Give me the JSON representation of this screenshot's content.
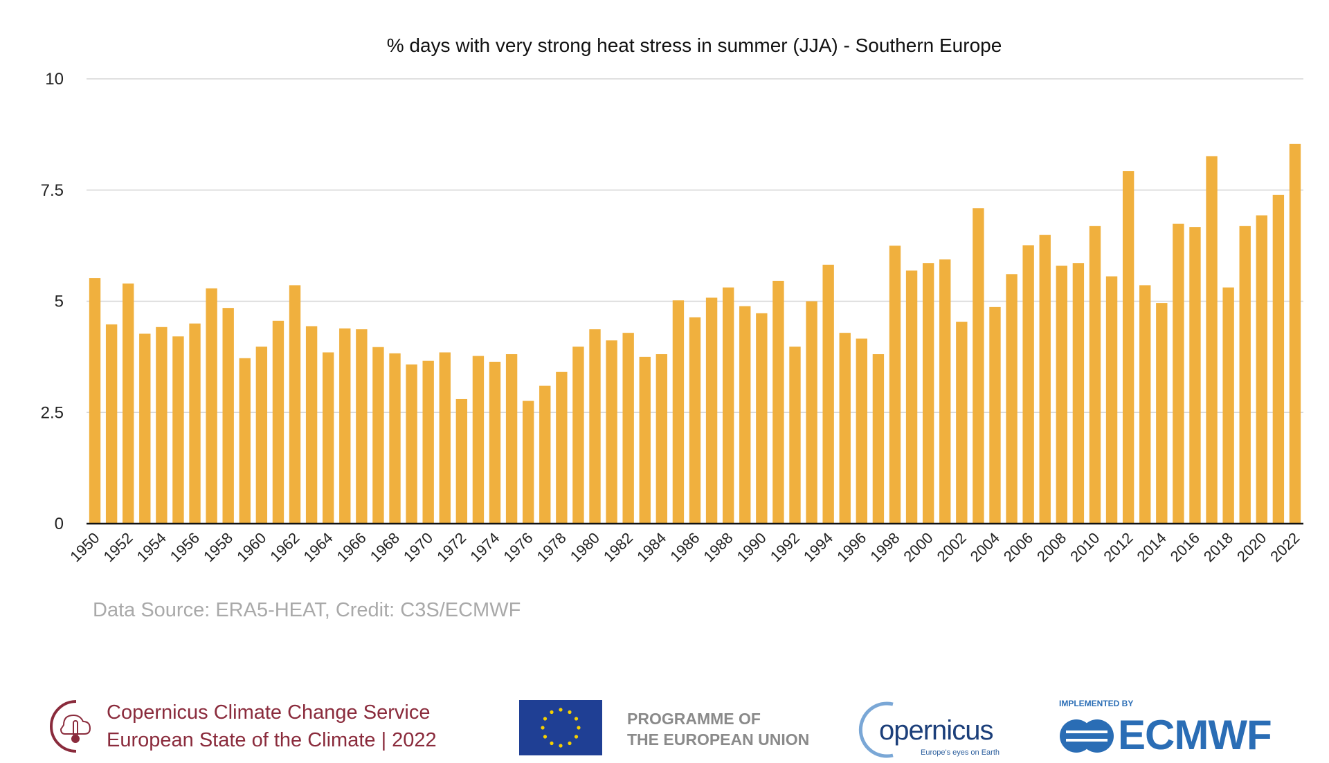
{
  "chart_data": {
    "type": "bar",
    "title": "% days with very strong heat stress in summer (JJA) - Southern Europe",
    "xlabel": "",
    "ylabel": "",
    "ylim": [
      0,
      10
    ],
    "yticks": [
      "0",
      "2.5",
      "5",
      "7.5",
      "10"
    ],
    "grid": true,
    "bar_color": "#F0B03E",
    "categories": [
      1950,
      1951,
      1952,
      1953,
      1954,
      1955,
      1956,
      1957,
      1958,
      1959,
      1960,
      1961,
      1962,
      1963,
      1964,
      1965,
      1966,
      1967,
      1968,
      1969,
      1970,
      1971,
      1972,
      1973,
      1974,
      1975,
      1976,
      1977,
      1978,
      1979,
      1980,
      1981,
      1982,
      1983,
      1984,
      1985,
      1986,
      1987,
      1988,
      1989,
      1990,
      1991,
      1992,
      1993,
      1994,
      1995,
      1996,
      1997,
      1998,
      1999,
      2000,
      2001,
      2002,
      2003,
      2004,
      2005,
      2006,
      2007,
      2008,
      2009,
      2010,
      2011,
      2012,
      2013,
      2014,
      2015,
      2016,
      2017,
      2018,
      2019,
      2020,
      2021,
      2022
    ],
    "values": [
      5.52,
      4.48,
      5.4,
      4.27,
      4.42,
      4.21,
      4.5,
      5.29,
      4.85,
      3.72,
      3.98,
      4.56,
      5.36,
      4.44,
      3.85,
      4.39,
      4.37,
      3.97,
      3.83,
      3.58,
      3.66,
      3.85,
      2.8,
      3.77,
      3.64,
      3.81,
      2.76,
      3.1,
      3.41,
      3.98,
      4.37,
      4.12,
      4.29,
      3.75,
      3.81,
      5.02,
      4.64,
      5.08,
      5.31,
      4.89,
      4.73,
      5.46,
      3.98,
      5.0,
      5.82,
      4.29,
      4.16,
      3.81,
      6.25,
      5.69,
      5.86,
      5.94,
      4.54,
      7.09,
      4.87,
      5.61,
      6.26,
      6.49,
      5.8,
      5.86,
      6.69,
      5.56,
      7.93,
      5.36,
      4.96,
      6.74,
      6.67,
      8.26,
      5.31,
      6.69,
      6.93,
      7.39,
      8.54
    ],
    "xtick_labels": [
      "1950",
      "1952",
      "1954",
      "1956",
      "1958",
      "1960",
      "1962",
      "1964",
      "1966",
      "1968",
      "1970",
      "1972",
      "1974",
      "1976",
      "1978",
      "1980",
      "1982",
      "1984",
      "1986",
      "1988",
      "1990",
      "1992",
      "1994",
      "1996",
      "1998",
      "2000",
      "2002",
      "2004",
      "2006",
      "2008",
      "2010",
      "2012",
      "2014",
      "2016",
      "2018",
      "2020",
      "2022"
    ]
  },
  "source": "Data Source: ERA5-HEAT, Credit: C3S/ECMWF",
  "footer": {
    "c3s_line1": "Copernicus Climate Change Service",
    "c3s_line2": "European State of the Climate | 2022",
    "eu_line1": "PROGRAMME OF",
    "eu_line2": "THE EUROPEAN UNION",
    "copernicus": "opernicus",
    "copernicus_tagline": "Europe's eyes on Earth",
    "ecmwf_implemented": "IMPLEMENTED BY",
    "ecmwf": "ECMWF",
    "c3s_color": "#8a2b3c",
    "eu_flag_color": "#1f3f94",
    "ecmwf_color": "#2a6db5"
  }
}
